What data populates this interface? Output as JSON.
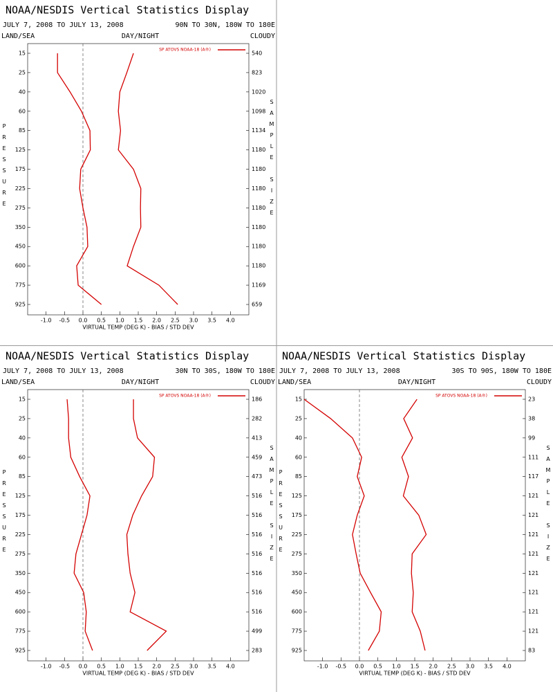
{
  "chart_data": [
    {
      "type": "line",
      "title": "NOAA/NESDIS Vertical Statistics Display",
      "date_range": "JULY 7, 2008 TO JULY 13, 2008",
      "region": "90N TO 30N, 180W TO 180E",
      "surface_label": "LAND/SEA",
      "time_label": "DAY/NIGHT",
      "cloud_label": "CLOUDY",
      "y_label": "PRESSURE",
      "y2_label": "SAMPLE SIZE",
      "x_label": "VIRTUAL TEMP (DEG K) - BIAS / STD DEV",
      "categories": [
        15,
        25,
        40,
        60,
        85,
        125,
        175,
        225,
        275,
        350,
        450,
        600,
        775,
        925
      ],
      "sample_size": [
        540,
        823,
        1020,
        1098,
        1134,
        1180,
        1180,
        1180,
        1180,
        1180,
        1180,
        1180,
        1169,
        659
      ],
      "series": [
        {
          "name": "SP ATOVS NOAA-18 (A®)",
          "color": "#d40000",
          "values": [
            -0.69,
            -0.69,
            -0.35,
            -0.04,
            0.19,
            0.2,
            -0.06,
            -0.09,
            0,
            0.11,
            0.13,
            -0.17,
            -0.13,
            0.5
          ],
          "std_dev": [
            1.37,
            1.19,
            1.0,
            0.96,
            1.02,
            0.96,
            1.37,
            1.57,
            1.56,
            1.57,
            1.37,
            1.2,
            2.06,
            2.57
          ]
        }
      ],
      "xlim": [
        -1.5,
        4.5
      ],
      "xticks": [
        {
          "value": -1,
          "label": "-1.0"
        },
        {
          "value": -0.5,
          "label": "-0.5"
        },
        {
          "value": 0,
          "label": "0.0"
        },
        {
          "value": 0.5,
          "label": "0.5"
        },
        {
          "value": 1,
          "label": "1.0"
        },
        {
          "value": 1.5,
          "label": "1.5"
        },
        {
          "value": 2,
          "label": "2.0"
        },
        {
          "value": 2.5,
          "label": "2.5"
        },
        {
          "value": 3,
          "label": "3.0"
        },
        {
          "value": 3.5,
          "label": "3.5"
        },
        {
          "value": 4,
          "label": "4.0"
        }
      ]
    },
    {
      "type": "line",
      "title": "NOAA/NESDIS Vertical Statistics Display",
      "date_range": "JULY 7, 2008 TO JULY 13, 2008",
      "region": "30N TO 30S, 180W TO 180E",
      "surface_label": "LAND/SEA",
      "time_label": "DAY/NIGHT",
      "cloud_label": "CLOUDY",
      "y_label": "PRESSURE",
      "y2_label": "SAMPLE SIZE",
      "x_label": "VIRTUAL TEMP (DEG K) - BIAS / STD DEV",
      "categories": [
        15,
        25,
        40,
        60,
        85,
        125,
        175,
        225,
        275,
        350,
        450,
        600,
        775,
        925
      ],
      "sample_size": [
        186,
        282,
        413,
        459,
        473,
        516,
        516,
        516,
        516,
        516,
        516,
        516,
        499,
        283
      ],
      "series": [
        {
          "name": "SP ATOVS NOAA-18 (A®)",
          "color": "#d40000",
          "values": [
            -0.43,
            -0.39,
            -0.39,
            -0.33,
            -0.09,
            0.19,
            0.11,
            -0.04,
            -0.19,
            -0.24,
            0.02,
            0.09,
            0.06,
            0.26
          ],
          "std_dev": [
            1.37,
            1.37,
            1.48,
            1.94,
            1.89,
            1.59,
            1.35,
            1.19,
            1.22,
            1.28,
            1.41,
            1.28,
            2.26,
            1.74
          ]
        }
      ],
      "xlim": [
        -1.5,
        4.5
      ],
      "xticks": [
        {
          "value": -1,
          "label": "-1.0"
        },
        {
          "value": -0.5,
          "label": "-0.5"
        },
        {
          "value": 0,
          "label": "0.0"
        },
        {
          "value": 0.5,
          "label": "0.5"
        },
        {
          "value": 1,
          "label": "1.0"
        },
        {
          "value": 1.5,
          "label": "1.5"
        },
        {
          "value": 2,
          "label": "2.0"
        },
        {
          "value": 2.5,
          "label": "2.5"
        },
        {
          "value": 3,
          "label": "3.0"
        },
        {
          "value": 3.5,
          "label": "3.5"
        },
        {
          "value": 4,
          "label": "4.0"
        }
      ]
    },
    {
      "type": "line",
      "title": "NOAA/NESDIS Vertical Statistics Display",
      "date_range": "JULY 7, 2008 TO JULY 13, 2008",
      "region": "30S TO 90S, 180W TO 180E",
      "surface_label": "LAND/SEA",
      "time_label": "DAY/NIGHT",
      "cloud_label": "CLOUDY",
      "y_label": "PRESSURE",
      "y2_label": "SAMPLE SIZE",
      "x_label": "VIRTUAL TEMP (DEG K) - BIAS / STD DEV",
      "categories": [
        15,
        25,
        40,
        60,
        85,
        125,
        175,
        225,
        275,
        350,
        450,
        600,
        775,
        925
      ],
      "sample_size": [
        23,
        38,
        99,
        111,
        117,
        121,
        121,
        121,
        121,
        121,
        121,
        121,
        121,
        83
      ],
      "series": [
        {
          "name": "SP ATOVS NOAA-18 (A®)",
          "color": "#d40000",
          "values": [
            -1.5,
            -0.78,
            -0.19,
            0.06,
            -0.06,
            0.13,
            -0.06,
            -0.19,
            -0.09,
            0.02,
            0.3,
            0.59,
            0.54,
            0.24
          ],
          "std_dev": [
            1.56,
            1.2,
            1.44,
            1.15,
            1.33,
            1.19,
            1.61,
            1.81,
            1.43,
            1.41,
            1.46,
            1.43,
            1.65,
            1.78
          ]
        }
      ],
      "xlim": [
        -1.5,
        4.5
      ],
      "xticks": [
        {
          "value": -1,
          "label": "-1.0"
        },
        {
          "value": -0.5,
          "label": "-0.5"
        },
        {
          "value": 0,
          "label": "0.0"
        },
        {
          "value": 0.5,
          "label": "0.5"
        },
        {
          "value": 1,
          "label": "1.0"
        },
        {
          "value": 1.5,
          "label": "1.5"
        },
        {
          "value": 2,
          "label": "2.0"
        },
        {
          "value": 2.5,
          "label": "2.5"
        },
        {
          "value": 3,
          "label": "3.0"
        },
        {
          "value": 3.5,
          "label": "3.5"
        },
        {
          "value": 4,
          "label": "4.0"
        }
      ]
    }
  ]
}
